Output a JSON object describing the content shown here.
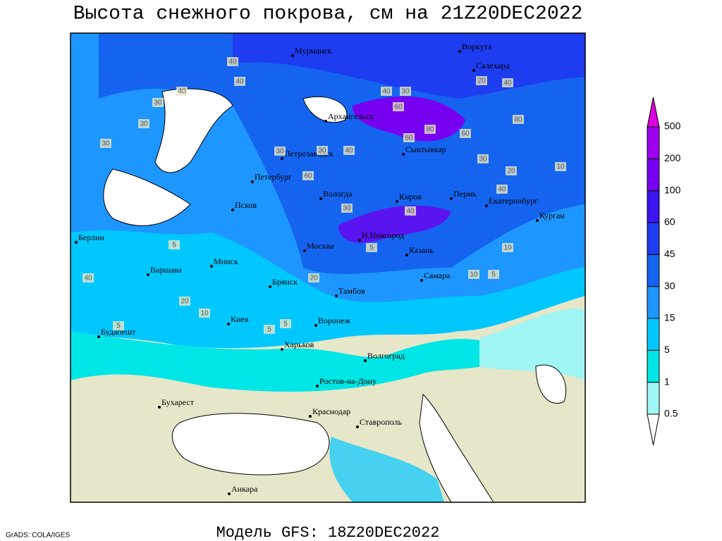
{
  "title": "Высота снежного покрова, см на 21Z20DEC2022",
  "model": "Модель GFS: 18Z20DEC2022",
  "credit": "GrADS: COLA/IGES",
  "cities": [
    "Мурманск",
    "Воркута",
    "Салехард",
    "Архангельск",
    "Сыктывкар",
    "Петрозаводск",
    "Петербург",
    "Вологда",
    "Киров",
    "Пермь",
    "Екатеринбург",
    "Курган",
    "Псков",
    "Берлин",
    "Н.Новгород",
    "Москва",
    "Казань",
    "Минск",
    "Варшава",
    "Самара",
    "Брянск",
    "Тамбов",
    "Киев",
    "Воронеж",
    "Будапешт",
    "Харьков",
    "Волгоград",
    "Ростов-на-Дону",
    "Бухарест",
    "Краснодар",
    "Ставрополь",
    "Анкара"
  ],
  "contour_labels": [
    40,
    40,
    40,
    30,
    30,
    30,
    60,
    80,
    60,
    60,
    80,
    40,
    40,
    30,
    30,
    30,
    40,
    60,
    40,
    30,
    40,
    10,
    30,
    20,
    20,
    5,
    10,
    5,
    10,
    5,
    20,
    40,
    20,
    10,
    5,
    5,
    5
  ],
  "legend": {
    "levels": [
      0.5,
      1,
      5,
      15,
      30,
      45,
      60,
      100,
      200,
      500
    ],
    "colors": [
      "#ffffff",
      "#a0f5f5",
      "#00e6e6",
      "#00c8ff",
      "#1e96ff",
      "#1464f0",
      "#1e3cf0",
      "#3c14f0",
      "#7800f0",
      "#a000f0",
      "#dc00dc"
    ]
  }
}
